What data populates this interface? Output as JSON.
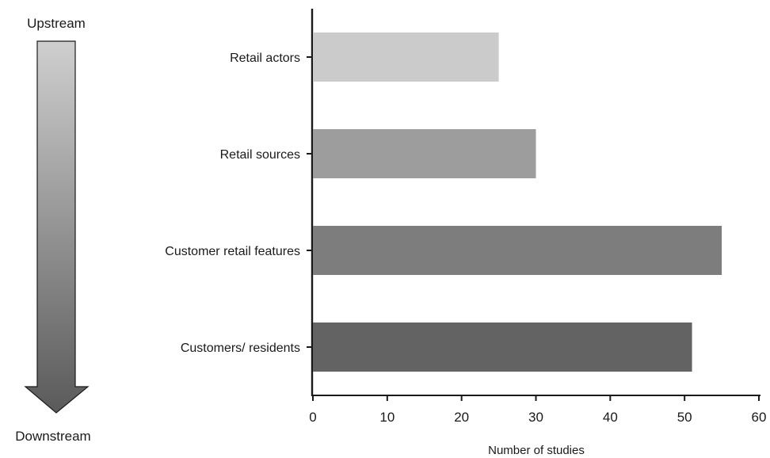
{
  "flow": {
    "top_label": "Upstream",
    "bottom_label": "Downstream",
    "gradient_top": "#cfcfcf",
    "gradient_bottom": "#5a5a5a"
  },
  "chart_data": {
    "type": "bar",
    "orientation": "horizontal",
    "categories": [
      "Retail actors",
      "Retail sources",
      "Customer retail features",
      "Customers/ residents"
    ],
    "values": [
      25,
      30,
      55,
      51
    ],
    "colors": [
      "#cbcbcb",
      "#9d9d9d",
      "#7d7d7d",
      "#636363"
    ],
    "xlabel": "Number of studies",
    "ylabel": "",
    "xlim": [
      0,
      60
    ],
    "xticks": [
      0,
      10,
      20,
      30,
      40,
      50,
      60
    ],
    "grid": false,
    "legend": "none"
  }
}
